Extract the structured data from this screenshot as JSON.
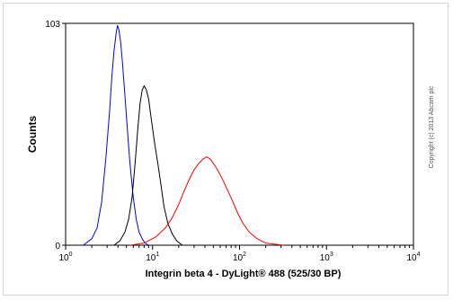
{
  "chart_data": {
    "type": "line",
    "xlabel": "Integrin beta 4 - DyLight® 488 (525/30 BP)",
    "ylabel": "Counts",
    "x_scale": "log",
    "xlim": [
      1,
      10000
    ],
    "ylim": [
      0,
      103
    ],
    "x_ticks": [
      {
        "value": 1,
        "mantissa": "10",
        "exp": "0"
      },
      {
        "value": 10,
        "mantissa": "10",
        "exp": "1"
      },
      {
        "value": 100,
        "mantissa": "10",
        "exp": "2"
      },
      {
        "value": 1000,
        "mantissa": "10",
        "exp": "3"
      },
      {
        "value": 10000,
        "mantissa": "10",
        "exp": "4"
      }
    ],
    "y_ticks": [
      {
        "value": 0,
        "label": "0"
      },
      {
        "value": 103,
        "label": "103"
      }
    ],
    "annotation": "Copyright (c) 2013 Abcam plc",
    "grid": false,
    "series": [
      {
        "color": "#0000ff",
        "x": [
          1.6,
          2.0,
          2.3,
          2.6,
          2.9,
          3.2,
          3.4,
          3.6,
          3.8,
          3.95,
          4.1,
          4.3,
          4.5,
          4.8,
          5.1,
          5.5,
          6.0,
          6.5,
          7.0,
          7.6,
          8.2,
          9.0
        ],
        "y": [
          0,
          3,
          8,
          20,
          40,
          62,
          78,
          90,
          98,
          102,
          100,
          94,
          85,
          70,
          55,
          38,
          22,
          12,
          6,
          3,
          1,
          0
        ]
      },
      {
        "color": "#000000",
        "x": [
          3.6,
          4.2,
          4.8,
          5.3,
          5.8,
          6.3,
          6.8,
          7.2,
          7.6,
          8.0,
          8.5,
          9.0,
          9.7,
          10.5,
          11.5,
          12.5,
          13.5,
          15.0,
          17.0,
          19.0,
          22.0
        ],
        "y": [
          0,
          2,
          6,
          12,
          22,
          38,
          55,
          66,
          72,
          74,
          72,
          68,
          58,
          48,
          38,
          28,
          18,
          10,
          5,
          2,
          0
        ]
      },
      {
        "color": "#ff0000",
        "x": [
          5.5,
          8.0,
          11.0,
          14.0,
          17.0,
          20.0,
          23.0,
          26.0,
          30.0,
          34.0,
          38.0,
          42.0,
          46.0,
          50.0,
          56.0,
          63.0,
          72.0,
          82.0,
          95.0,
          110.0,
          130.0,
          160.0,
          200.0,
          250.0,
          320.0
        ],
        "y": [
          0,
          1,
          4,
          8,
          13,
          19,
          25,
          30,
          35,
          38,
          40,
          41,
          40,
          38,
          35,
          31,
          26,
          21,
          15,
          10,
          6,
          3,
          1,
          0.5,
          0
        ]
      }
    ]
  }
}
